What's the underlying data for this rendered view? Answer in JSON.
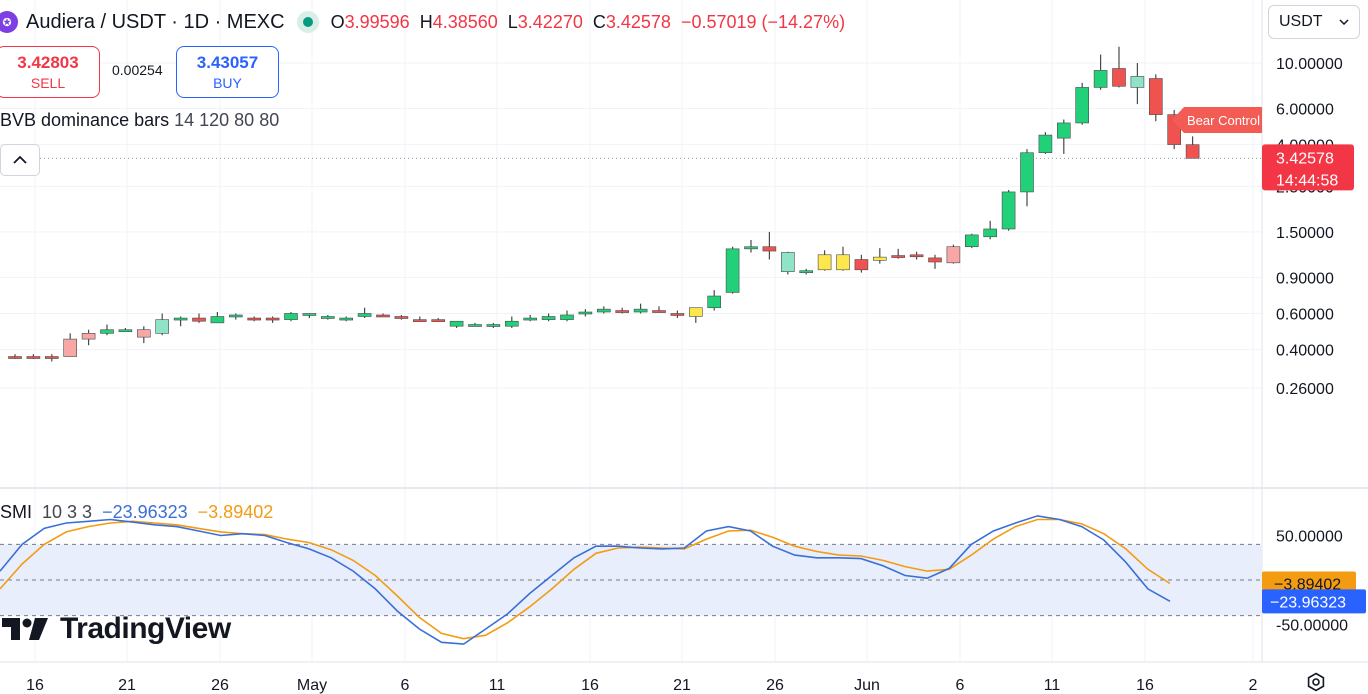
{
  "header": {
    "symbol": "Audiera / USDT · 1D · MEXC",
    "open_label": "O",
    "open": "3.99596",
    "high_label": "H",
    "high": "4.38560",
    "low_label": "L",
    "low": "3.42270",
    "close_label": "C",
    "close": "3.42578",
    "change": "−0.57019 (−14.27%)"
  },
  "trade": {
    "sell_price": "3.42803",
    "sell_label": "SELL",
    "spread": "0.00254",
    "buy_price": "3.43057",
    "buy_label": "BUY"
  },
  "indicator_main": {
    "name": "BVB dominance bars",
    "args": "14 120 80 80"
  },
  "indicator_sub": {
    "name": "SMI",
    "args": "10 3 3",
    "value_a": "−23.96323",
    "value_b": "−3.89402"
  },
  "currency_selector": {
    "value": "USDT"
  },
  "logo_text": "TradingView",
  "colors": {
    "up": "#22d07a",
    "down": "#ef5350",
    "neutral_up": "#8fe3c6",
    "neutral_down": "#f7a7a5",
    "yellow": "#fde74c",
    "smi": "#3b6fd8",
    "signal": "#f39c12"
  },
  "chart_data": [
    {
      "type": "candlestick",
      "scale": "log",
      "y_ticks": [
        "10.00000",
        "6.00000",
        "4.00000",
        "2.50000",
        "1.50000",
        "0.90000",
        "0.60000",
        "0.40000",
        "0.26000"
      ],
      "x_ticks": [
        "16",
        "21",
        "26",
        "May",
        "6",
        "11",
        "16",
        "21",
        "26",
        "Jun",
        "6",
        "11",
        "16",
        "2"
      ],
      "last_price": "3.42578",
      "countdown": "14:44:58",
      "annotation": "Bear Control",
      "candles": [
        {
          "o": 0.37,
          "h": 0.38,
          "l": 0.36,
          "c": 0.37,
          "col": "down"
        },
        {
          "o": 0.37,
          "h": 0.38,
          "l": 0.36,
          "c": 0.37,
          "col": "down"
        },
        {
          "o": 0.37,
          "h": 0.38,
          "l": 0.35,
          "c": 0.37,
          "col": "down"
        },
        {
          "o": 0.37,
          "h": 0.48,
          "l": 0.37,
          "c": 0.45,
          "col": "neutral_down"
        },
        {
          "o": 0.45,
          "h": 0.5,
          "l": 0.42,
          "c": 0.48,
          "col": "neutral_down"
        },
        {
          "o": 0.48,
          "h": 0.53,
          "l": 0.47,
          "c": 0.5,
          "col": "up"
        },
        {
          "o": 0.5,
          "h": 0.51,
          "l": 0.49,
          "c": 0.5,
          "col": "up"
        },
        {
          "o": 0.46,
          "h": 0.52,
          "l": 0.43,
          "c": 0.5,
          "col": "neutral_down"
        },
        {
          "o": 0.48,
          "h": 0.6,
          "l": 0.47,
          "c": 0.56,
          "col": "neutral_up"
        },
        {
          "o": 0.56,
          "h": 0.58,
          "l": 0.52,
          "c": 0.57,
          "col": "up"
        },
        {
          "o": 0.57,
          "h": 0.6,
          "l": 0.54,
          "c": 0.55,
          "col": "down"
        },
        {
          "o": 0.54,
          "h": 0.61,
          "l": 0.54,
          "c": 0.58,
          "col": "up"
        },
        {
          "o": 0.58,
          "h": 0.6,
          "l": 0.56,
          "c": 0.59,
          "col": "up"
        },
        {
          "o": 0.57,
          "h": 0.58,
          "l": 0.55,
          "c": 0.56,
          "col": "down"
        },
        {
          "o": 0.57,
          "h": 0.58,
          "l": 0.54,
          "c": 0.56,
          "col": "down"
        },
        {
          "o": 0.56,
          "h": 0.61,
          "l": 0.55,
          "c": 0.6,
          "col": "up"
        },
        {
          "o": 0.59,
          "h": 0.6,
          "l": 0.57,
          "c": 0.6,
          "col": "up"
        },
        {
          "o": 0.58,
          "h": 0.59,
          "l": 0.56,
          "c": 0.57,
          "col": "up"
        },
        {
          "o": 0.56,
          "h": 0.58,
          "l": 0.55,
          "c": 0.57,
          "col": "up"
        },
        {
          "o": 0.58,
          "h": 0.64,
          "l": 0.57,
          "c": 0.6,
          "col": "up"
        },
        {
          "o": 0.59,
          "h": 0.6,
          "l": 0.58,
          "c": 0.59,
          "col": "down"
        },
        {
          "o": 0.58,
          "h": 0.59,
          "l": 0.56,
          "c": 0.57,
          "col": "down"
        },
        {
          "o": 0.56,
          "h": 0.58,
          "l": 0.55,
          "c": 0.56,
          "col": "down"
        },
        {
          "o": 0.56,
          "h": 0.57,
          "l": 0.55,
          "c": 0.55,
          "col": "down"
        },
        {
          "o": 0.52,
          "h": 0.55,
          "l": 0.51,
          "c": 0.55,
          "col": "up"
        },
        {
          "o": 0.53,
          "h": 0.54,
          "l": 0.52,
          "c": 0.53,
          "col": "up"
        },
        {
          "o": 0.52,
          "h": 0.54,
          "l": 0.51,
          "c": 0.53,
          "col": "up"
        },
        {
          "o": 0.52,
          "h": 0.58,
          "l": 0.51,
          "c": 0.55,
          "col": "up"
        },
        {
          "o": 0.56,
          "h": 0.59,
          "l": 0.55,
          "c": 0.57,
          "col": "up"
        },
        {
          "o": 0.56,
          "h": 0.6,
          "l": 0.55,
          "c": 0.58,
          "col": "up"
        },
        {
          "o": 0.56,
          "h": 0.62,
          "l": 0.55,
          "c": 0.59,
          "col": "up"
        },
        {
          "o": 0.6,
          "h": 0.63,
          "l": 0.58,
          "c": 0.61,
          "col": "up"
        },
        {
          "o": 0.61,
          "h": 0.65,
          "l": 0.6,
          "c": 0.63,
          "col": "up"
        },
        {
          "o": 0.62,
          "h": 0.64,
          "l": 0.6,
          "c": 0.62,
          "col": "down"
        },
        {
          "o": 0.61,
          "h": 0.67,
          "l": 0.6,
          "c": 0.63,
          "col": "up"
        },
        {
          "o": 0.62,
          "h": 0.65,
          "l": 0.61,
          "c": 0.62,
          "col": "down"
        },
        {
          "o": 0.59,
          "h": 0.62,
          "l": 0.57,
          "c": 0.6,
          "col": "down"
        },
        {
          "o": 0.58,
          "h": 0.64,
          "l": 0.54,
          "c": 0.64,
          "col": "yellow"
        },
        {
          "o": 0.64,
          "h": 0.78,
          "l": 0.62,
          "c": 0.73,
          "col": "up"
        },
        {
          "o": 0.76,
          "h": 1.27,
          "l": 0.75,
          "c": 1.24,
          "col": "up"
        },
        {
          "o": 1.24,
          "h": 1.37,
          "l": 1.19,
          "c": 1.27,
          "col": "up"
        },
        {
          "o": 1.27,
          "h": 1.5,
          "l": 1.1,
          "c": 1.21,
          "col": "down"
        },
        {
          "o": 1.19,
          "h": 1.2,
          "l": 0.93,
          "c": 0.96,
          "col": "neutral_up"
        },
        {
          "o": 0.96,
          "h": 0.99,
          "l": 0.93,
          "c": 0.97,
          "col": "up"
        },
        {
          "o": 0.98,
          "h": 1.22,
          "l": 0.97,
          "c": 1.16,
          "col": "yellow"
        },
        {
          "o": 1.16,
          "h": 1.27,
          "l": 0.97,
          "c": 0.98,
          "col": "yellow"
        },
        {
          "o": 1.1,
          "h": 1.16,
          "l": 0.95,
          "c": 0.98,
          "col": "down"
        },
        {
          "o": 1.09,
          "h": 1.25,
          "l": 1.05,
          "c": 1.13,
          "col": "yellow"
        },
        {
          "o": 1.13,
          "h": 1.24,
          "l": 1.11,
          "c": 1.15,
          "col": "down"
        },
        {
          "o": 1.15,
          "h": 1.2,
          "l": 1.1,
          "c": 1.16,
          "col": "down"
        },
        {
          "o": 1.12,
          "h": 1.16,
          "l": 0.99,
          "c": 1.07,
          "col": "down"
        },
        {
          "o": 1.06,
          "h": 1.3,
          "l": 1.05,
          "c": 1.27,
          "col": "neutral_down"
        },
        {
          "o": 1.27,
          "h": 1.47,
          "l": 1.25,
          "c": 1.45,
          "col": "up"
        },
        {
          "o": 1.42,
          "h": 1.7,
          "l": 1.38,
          "c": 1.55,
          "col": "up"
        },
        {
          "o": 1.55,
          "h": 2.4,
          "l": 1.52,
          "c": 2.35,
          "col": "up"
        },
        {
          "o": 2.35,
          "h": 3.8,
          "l": 2.0,
          "c": 3.65,
          "col": "up"
        },
        {
          "o": 3.65,
          "h": 4.6,
          "l": 3.6,
          "c": 4.45,
          "col": "up"
        },
        {
          "o": 4.3,
          "h": 5.3,
          "l": 3.6,
          "c": 5.1,
          "col": "up"
        },
        {
          "o": 5.1,
          "h": 8.0,
          "l": 5.0,
          "c": 7.6,
          "col": "up"
        },
        {
          "o": 7.6,
          "h": 11.0,
          "l": 7.4,
          "c": 9.2,
          "col": "up"
        },
        {
          "o": 9.4,
          "h": 12.0,
          "l": 7.6,
          "c": 7.7,
          "col": "down"
        },
        {
          "o": 8.6,
          "h": 10.0,
          "l": 6.3,
          "c": 7.6,
          "col": "neutral_up"
        },
        {
          "o": 8.4,
          "h": 8.8,
          "l": 5.2,
          "c": 5.6,
          "col": "down"
        },
        {
          "o": 5.6,
          "h": 5.9,
          "l": 3.8,
          "c": 4.0,
          "col": "down"
        },
        {
          "o": 3.99596,
          "h": 4.3856,
          "l": 3.4227,
          "c": 3.42578,
          "col": "down"
        }
      ]
    },
    {
      "type": "line",
      "title": "SMI 10 3 3",
      "y_ticks": [
        "50.00000",
        "-50.00000"
      ],
      "levels": [
        40,
        0,
        -40
      ],
      "series": [
        {
          "name": "SMI",
          "color": "#3b6fd8",
          "values": [
            10,
            40,
            58,
            64,
            66,
            68,
            65,
            62,
            60,
            55,
            50,
            52,
            50,
            42,
            35,
            25,
            10,
            -10,
            -35,
            -55,
            -70,
            -72,
            -55,
            -38,
            -15,
            5,
            25,
            38,
            38,
            36,
            35,
            36,
            55,
            60,
            55,
            38,
            28,
            25,
            25,
            24,
            16,
            5,
            2,
            13,
            40,
            55,
            64,
            72,
            68,
            60,
            45,
            20,
            -10,
            -23.96323
          ]
        },
        {
          "name": "Signal",
          "color": "#f39c12",
          "values": [
            -10,
            18,
            40,
            54,
            60,
            64,
            66,
            64,
            62,
            58,
            54,
            52,
            51,
            46,
            42,
            34,
            22,
            5,
            -18,
            -42,
            -60,
            -66,
            -62,
            -48,
            -30,
            -10,
            12,
            30,
            36,
            37,
            36,
            35,
            46,
            55,
            56,
            48,
            38,
            32,
            28,
            27,
            22,
            15,
            10,
            12,
            28,
            46,
            60,
            68,
            68,
            63,
            52,
            35,
            12,
            -3.89402
          ]
        }
      ]
    }
  ]
}
